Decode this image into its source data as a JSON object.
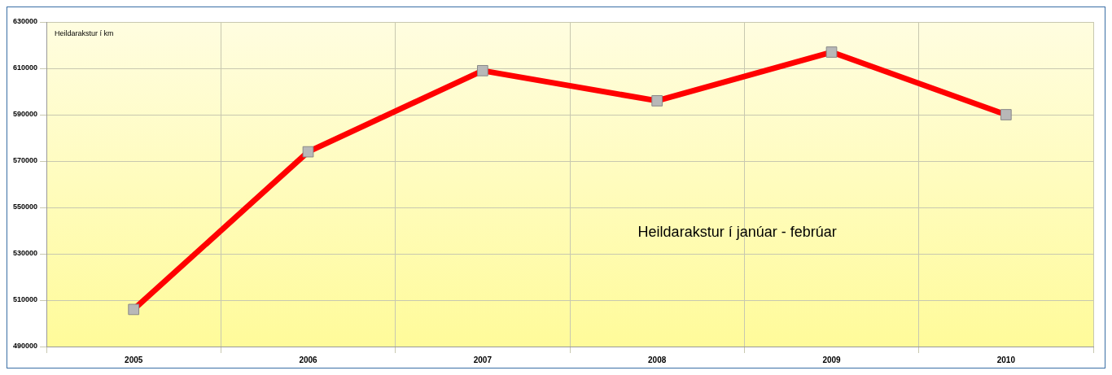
{
  "chart_data": {
    "type": "line",
    "title": "Heildarakstur í janúar - febrúar",
    "ylabel": "Heildarakstur í km",
    "categories": [
      "2005",
      "2006",
      "2007",
      "2008",
      "2009",
      "2010"
    ],
    "series": [
      {
        "color": "#ff0000",
        "values": [
          506000,
          574000,
          609000,
          596000,
          617000,
          590000
        ]
      }
    ],
    "ylim": [
      490000,
      630000
    ],
    "yticks": [
      490000,
      510000,
      530000,
      550000,
      570000,
      590000,
      610000,
      630000
    ],
    "grid": true,
    "legend": false,
    "marker": "square",
    "line_style": "solid"
  }
}
